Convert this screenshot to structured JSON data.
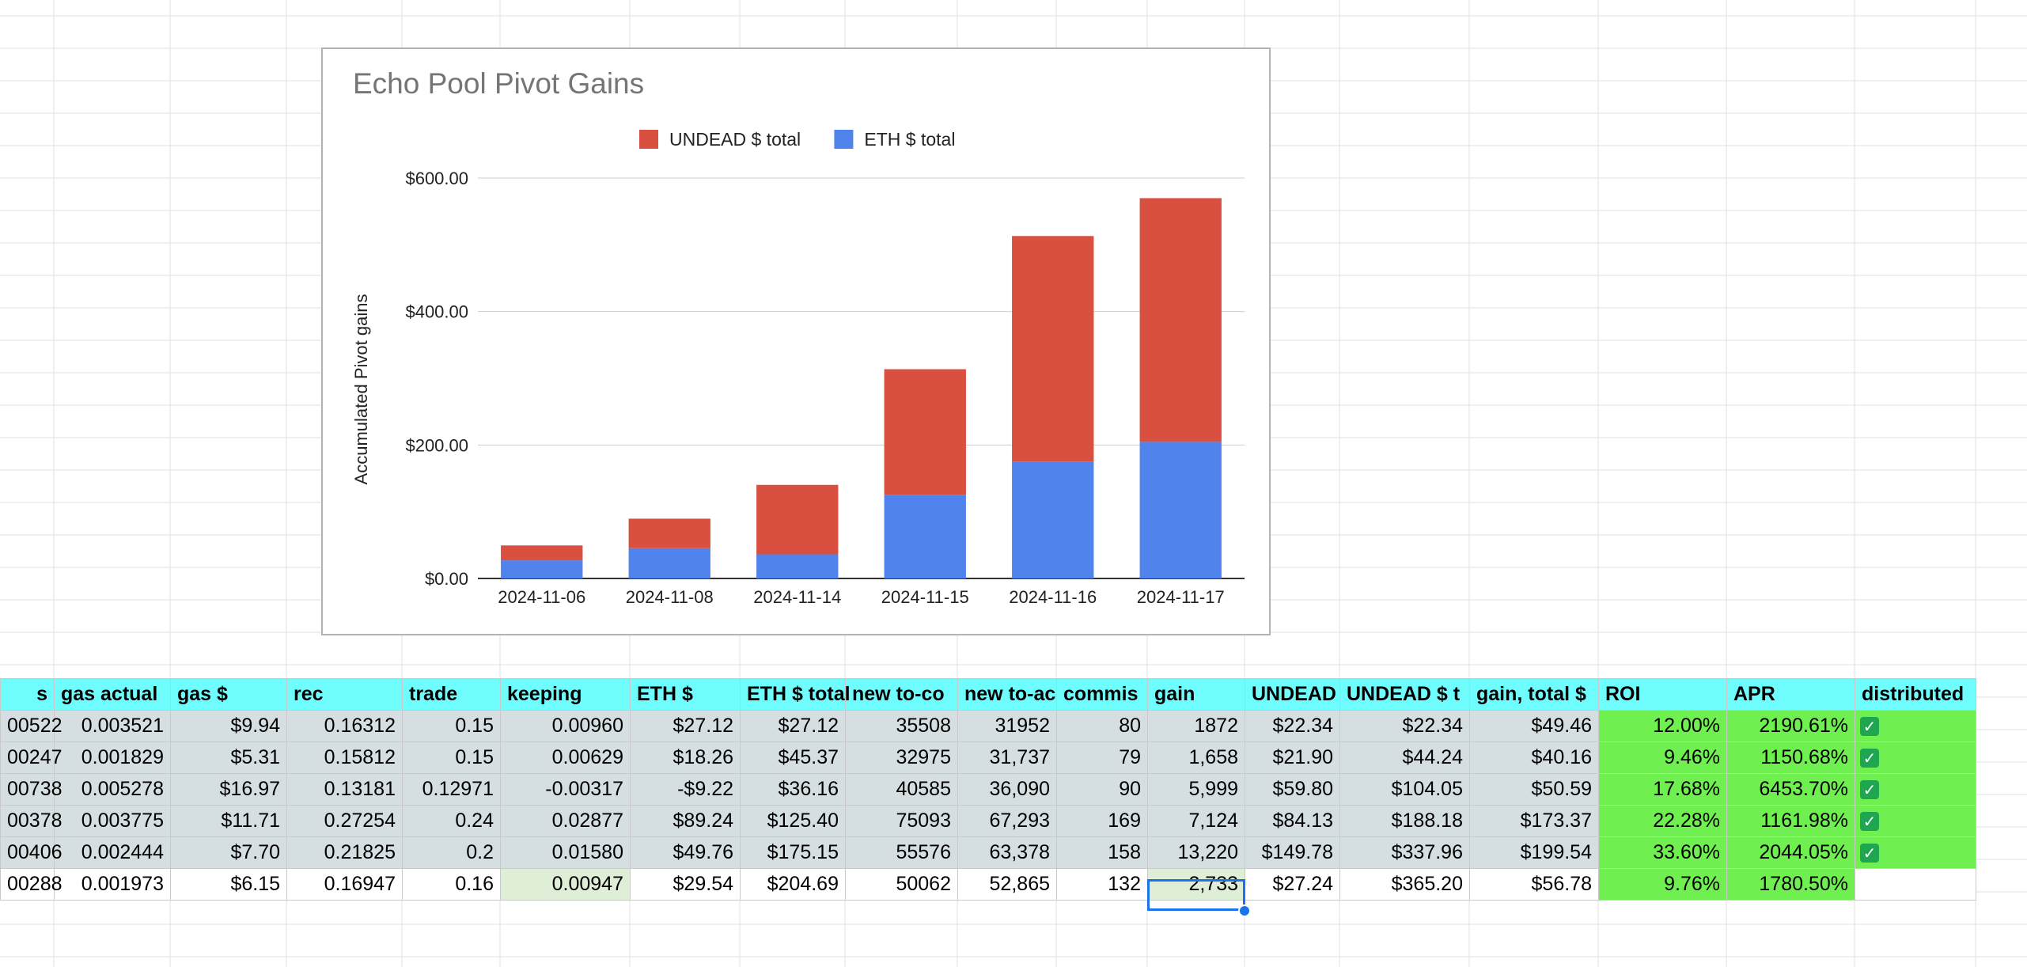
{
  "chart_data": {
    "type": "bar",
    "stacked": true,
    "title": "Echo Pool Pivot Gains",
    "xlabel": "",
    "ylabel": "Accumulated Pivot gains",
    "ylim": [
      0,
      600
    ],
    "yticks": [
      "$0.00",
      "$200.00",
      "$400.00",
      "$600.00"
    ],
    "ytick_values": [
      0,
      200,
      400,
      600
    ],
    "legend_position": "top",
    "categories": [
      "2024-11-06",
      "2024-11-08",
      "2024-11-14",
      "2024-11-15",
      "2024-11-16",
      "2024-11-17"
    ],
    "series": [
      {
        "name": "ETH $ total",
        "color": "#5083eb",
        "values": [
          27.12,
          45.37,
          36.16,
          125.4,
          175.15,
          204.69
        ]
      },
      {
        "name": "UNDEAD $ total",
        "color": "#d95040",
        "values": [
          22.34,
          44.24,
          104.05,
          188.18,
          337.96,
          365.2
        ]
      }
    ],
    "legend": [
      {
        "name": "UNDEAD $ total",
        "color": "#d95040"
      },
      {
        "name": "ETH $ total",
        "color": "#5083eb"
      }
    ],
    "grid": true
  },
  "table": {
    "headers": [
      "s",
      "gas actual",
      "gas $",
      "rec",
      "trade",
      "keeping",
      "ETH $",
      "ETH $ total",
      "new to-co",
      "new to-ac",
      "commis",
      "gain",
      "UNDEAD",
      "UNDEAD $ t",
      "gain, total $",
      "ROI",
      "APR",
      "distributed"
    ],
    "rows": [
      [
        "00522",
        "0.003521",
        "$9.94",
        "0.16312",
        "0.15",
        "0.00960",
        "$27.12",
        "$27.12",
        "35508",
        "31952",
        "80",
        "1872",
        "$22.34",
        "$22.34",
        "$49.46",
        "12.00%",
        "2190.61%",
        true
      ],
      [
        "00247",
        "0.001829",
        "$5.31",
        "0.15812",
        "0.15",
        "0.00629",
        "$18.26",
        "$45.37",
        "32975",
        "31,737",
        "79",
        "1,658",
        "$21.90",
        "$44.24",
        "$40.16",
        "9.46%",
        "1150.68%",
        true
      ],
      [
        "00738",
        "0.005278",
        "$16.97",
        "0.13181",
        "0.12971",
        "-0.00317",
        "-$9.22",
        "$36.16",
        "40585",
        "36,090",
        "90",
        "5,999",
        "$59.80",
        "$104.05",
        "$50.59",
        "17.68%",
        "6453.70%",
        true
      ],
      [
        "00378",
        "0.003775",
        "$11.71",
        "0.27254",
        "0.24",
        "0.02877",
        "$89.24",
        "$125.40",
        "75093",
        "67,293",
        "169",
        "7,124",
        "$84.13",
        "$188.18",
        "$173.37",
        "22.28%",
        "1161.98%",
        true
      ],
      [
        "00406",
        "0.002444",
        "$7.70",
        "0.21825",
        "0.2",
        "0.01580",
        "$49.76",
        "$175.15",
        "55576",
        "63,378",
        "158",
        "13,220",
        "$149.78",
        "$337.96",
        "$199.54",
        "33.60%",
        "2044.05%",
        true
      ],
      [
        "00288",
        "0.001973",
        "$6.15",
        "0.16947",
        "0.16",
        "0.00947",
        "$29.54",
        "$204.69",
        "50062",
        "52,865",
        "132",
        "2,733",
        "$27.24",
        "$365.20",
        "$56.78",
        "9.76%",
        "1780.50%",
        false
      ]
    ],
    "check_icon": "check-box-icon"
  }
}
